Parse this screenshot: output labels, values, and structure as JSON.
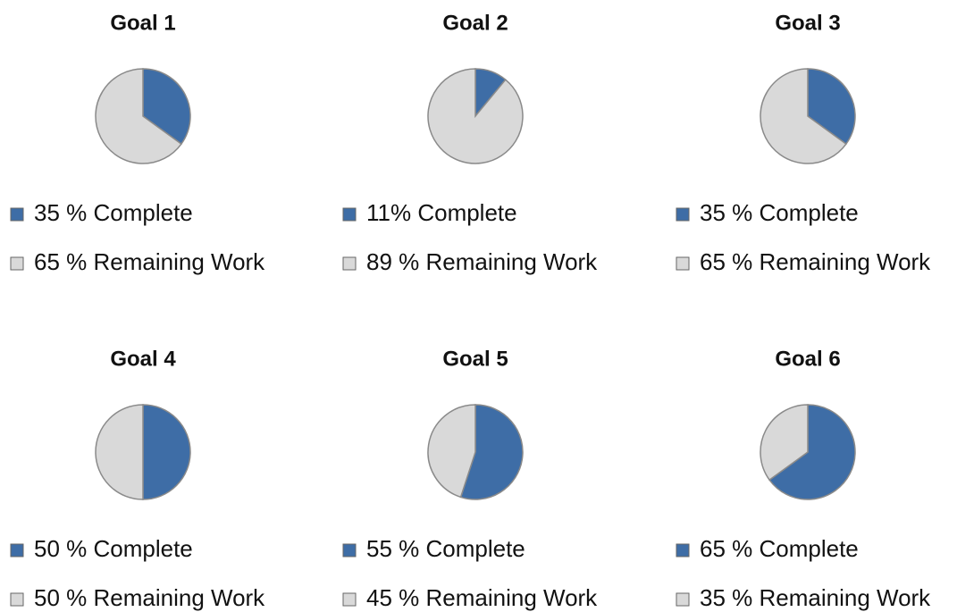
{
  "chart_data": [
    {
      "type": "pie",
      "title": "Goal 1",
      "categories": [
        "35 % Complete",
        "65 % Remaining Work"
      ],
      "values": [
        35,
        65
      ],
      "colors": [
        "#3e6da6",
        "#d9d9d9"
      ]
    },
    {
      "type": "pie",
      "title": "Goal 2",
      "categories": [
        "11% Complete",
        "89 % Remaining Work"
      ],
      "values": [
        11,
        89
      ],
      "colors": [
        "#3e6da6",
        "#d9d9d9"
      ]
    },
    {
      "type": "pie",
      "title": "Goal 3",
      "categories": [
        "35 % Complete",
        "65 % Remaining Work"
      ],
      "values": [
        35,
        65
      ],
      "colors": [
        "#3e6da6",
        "#d9d9d9"
      ]
    },
    {
      "type": "pie",
      "title": "Goal 4",
      "categories": [
        "50 % Complete",
        "50 % Remaining Work"
      ],
      "values": [
        50,
        50
      ],
      "colors": [
        "#3e6da6",
        "#d9d9d9"
      ]
    },
    {
      "type": "pie",
      "title": "Goal 5",
      "categories": [
        "55 % Complete",
        "45 % Remaining Work"
      ],
      "values": [
        55,
        45
      ],
      "colors": [
        "#3e6da6",
        "#d9d9d9"
      ]
    },
    {
      "type": "pie",
      "title": "Goal 6",
      "categories": [
        "65 % Complete",
        "35 % Remaining Work"
      ],
      "values": [
        65,
        35
      ],
      "colors": [
        "#3e6da6",
        "#d9d9d9"
      ]
    }
  ]
}
